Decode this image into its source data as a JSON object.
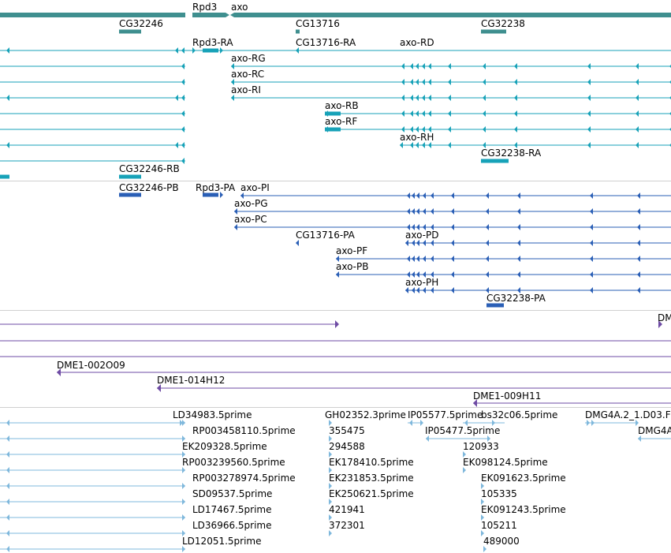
{
  "colors": {
    "gene": "#3f8f8f",
    "rna": "#17a2b8",
    "protein": "#2a5fb6",
    "clone": "#6e4ba4",
    "est": "#7fb8dc",
    "separator": "#d0d0d0"
  },
  "genes": {
    "rpd3": "Rpd3",
    "axo": "axo",
    "cg32246": "CG32246",
    "cg13716": "CG13716",
    "cg32238": "CG32238"
  },
  "transcripts": {
    "rpd3_ra": "Rpd3-RA",
    "cg13716_ra": "CG13716-RA",
    "axo_rd": "axo-RD",
    "axo_rg": "axo-RG",
    "axo_rc": "axo-RC",
    "axo_ri": "axo-RI",
    "axo_rb": "axo-RB",
    "axo_rf": "axo-RF",
    "axo_rh": "axo-RH",
    "cg32238_ra": "CG32238-RA",
    "cg32246_rb": "CG32246-RB"
  },
  "proteins": {
    "cg32246_pb": "CG32246-PB",
    "rpd3_pa": "Rpd3-PA",
    "axo_pi": "axo-PI",
    "axo_pg": "axo-PG",
    "axo_pc": "axo-PC",
    "cg13716_pa": "CG13716-PA",
    "axo_pd": "axo-PD",
    "axo_pf": "axo-PF",
    "axo_pb": "axo-PB",
    "axo_ph": "axo-PH",
    "cg32238_pa": "CG32238-PA"
  },
  "clones": {
    "dm_cut": "DM",
    "dme1_002o09": "DME1-002O09",
    "dme1_014h12": "DME1-014H12",
    "dme1_009h11": "DME1-009H11"
  },
  "ests": {
    "ld34983": "LD34983.5prime",
    "rp003458110": "RP003458110.5prime",
    "ek209328": "EK209328.5prime",
    "rp003239560": "RP003239560.5prime",
    "rp003278974": "RP003278974.5prime",
    "sd09537": "SD09537.5prime",
    "ld17467": "LD17467.5prime",
    "ld36966": "LD36966.5prime",
    "ld12051": "LD12051.5prime",
    "gh02352": "GH02352.3prime",
    "n355475": "355475",
    "n294588": "294588",
    "ek178410": "EK178410.5prime",
    "ek231853": "EK231853.5prime",
    "ek250621": "EK250621.5prime",
    "n421941": "421941",
    "n372301": "372301",
    "ip05577": "IP05577.5prime",
    "ip05477": "IP05477.5prime",
    "bs32c06": "bs32c06.5prime",
    "n120933": "120933",
    "ek098124": "EK098124.5prime",
    "ek091623": "EK091623.5prime",
    "n105335": "105335",
    "ek091243": "EK091243.5prime",
    "n105211": "105211",
    "n489000": "489000",
    "dmg4a2": "DMG4A.2_1.D03.F",
    "dmg4a_cut": "DMG4A"
  }
}
